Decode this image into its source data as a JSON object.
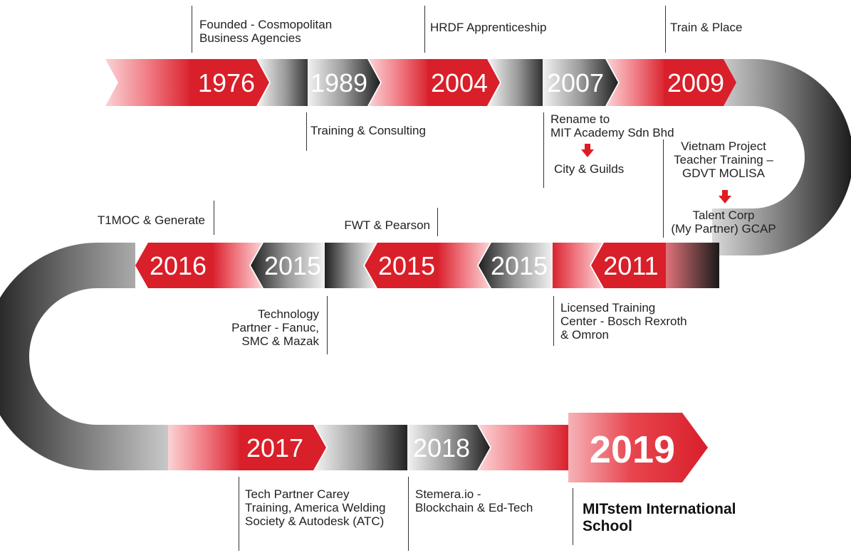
{
  "timeline": {
    "row1_years": [
      "1976",
      "1989",
      "2004",
      "2007",
      "2009"
    ],
    "row2_years": [
      "2016",
      "2015",
      "2015",
      "2015",
      "2011"
    ],
    "row3_years": [
      "2017",
      "2018",
      "2019"
    ]
  },
  "events": {
    "e1976": "Founded - Cosmopolitan\nBusiness Agencies",
    "e1989": "Training & Consulting",
    "e2004": "HRDF Apprenticeship",
    "e2007_a": "Rename to\nMIT Academy Sdn Bhd",
    "e2007_b": "City & Guilds",
    "e2009": "Train & Place",
    "e2011_a": "Vietnam Project\nTeacher Training –\nGDVT MOLISA",
    "e2011_b": "Talent Corp\n(My Partner) GCAP",
    "e2011_c": "Licensed Training\nCenter - Bosch Rexroth\n& Omron",
    "e2015_fwt": "FWT & Pearson",
    "e2015_tech": "Technology\nPartner - Fanuc,\nSMC & Mazak",
    "e2016": "T1MOC & Generate",
    "e2017": "Tech Partner Carey\nTraining, America Welding\nSociety & Autodesk (ATC)",
    "e2018": "Stemera.io -\nBlockchain & Ed-Tech",
    "e2019": "MITstem International\nSchool"
  },
  "colors": {
    "red": "#d81f2a",
    "pink": "#f08088",
    "dark": "#2a2a2a",
    "light_gray": "#e6e6e6"
  }
}
